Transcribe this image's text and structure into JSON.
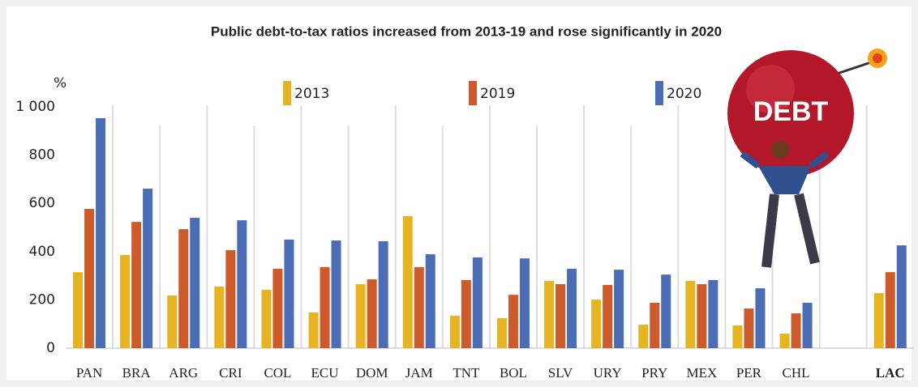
{
  "chart_data": {
    "type": "bar",
    "title": "Public debt-to-tax ratios increased from 2013-19 and rose significantly in 2020",
    "y_label": "%",
    "categories": [
      "PAN",
      "BRA",
      "ARG",
      "CRI",
      "COL",
      "ECU",
      "DOM",
      "JAM",
      "TNT",
      "BOL",
      "SLV",
      "URY",
      "PRY",
      "MEX",
      "PER",
      "CHL",
      null,
      "LAC"
    ],
    "series": [
      {
        "name": "2013",
        "color": "#e6b422",
        "values": [
          315,
          386,
          218,
          255,
          242,
          148,
          265,
          547,
          134,
          124,
          279,
          201,
          97,
          279,
          94,
          60,
          null,
          228
        ]
      },
      {
        "name": "2019",
        "color": "#cc5a2a",
        "values": [
          577,
          523,
          493,
          406,
          329,
          336,
          285,
          336,
          282,
          221,
          265,
          262,
          188,
          265,
          164,
          144,
          null,
          315
        ]
      },
      {
        "name": "2020",
        "color": "#4a6db5",
        "values": [
          953,
          661,
          540,
          530,
          450,
          446,
          443,
          389,
          376,
          372,
          329,
          325,
          305,
          282,
          248,
          188,
          null,
          426
        ]
      }
    ],
    "ylim": [
      0,
      1000
    ],
    "yticks": [
      0,
      200,
      400,
      600,
      800,
      {
        "value": 1000,
        "label": "1 000"
      }
    ],
    "grid": false
  },
  "illustration_text": "DEBT"
}
